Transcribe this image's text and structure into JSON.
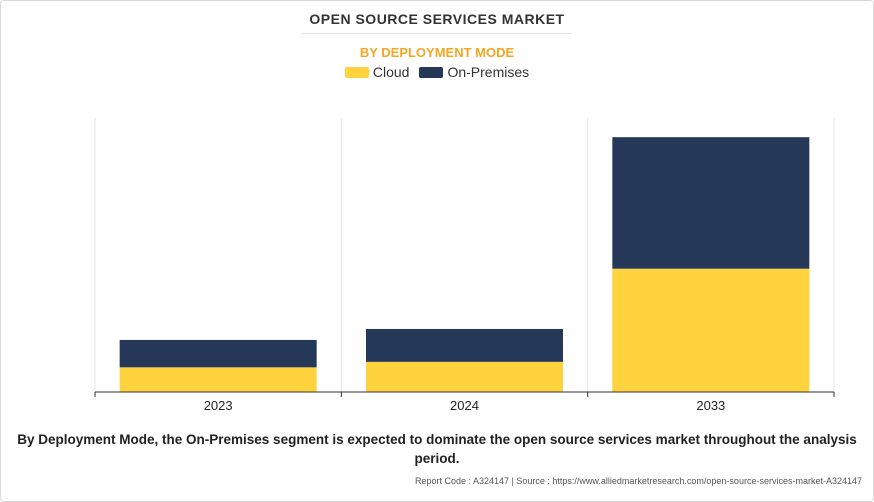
{
  "chart_data": {
    "type": "bar",
    "stacked": true,
    "title": "OPEN SOURCE SERVICES MARKET",
    "subtitle": "BY DEPLOYMENT MODE",
    "categories": [
      "2023",
      "2024",
      "2033"
    ],
    "series": [
      {
        "name": "Cloud",
        "color": "#ffd33d",
        "values": [
          9,
          11,
          45
        ]
      },
      {
        "name": "On-Premises",
        "color": "#253858",
        "values": [
          10,
          12,
          48
        ]
      }
    ],
    "ylim": [
      0,
      100
    ],
    "grid": "vertical",
    "xlabel": "",
    "ylabel": ""
  },
  "caption": "By Deployment Mode, the On-Premises segment is expected to dominate the open source services market throughout the analysis period.",
  "footer": "Report Code : A324147  |  Source : https://www.alliedmarketresearch.com/open-source-services-market-A324147"
}
